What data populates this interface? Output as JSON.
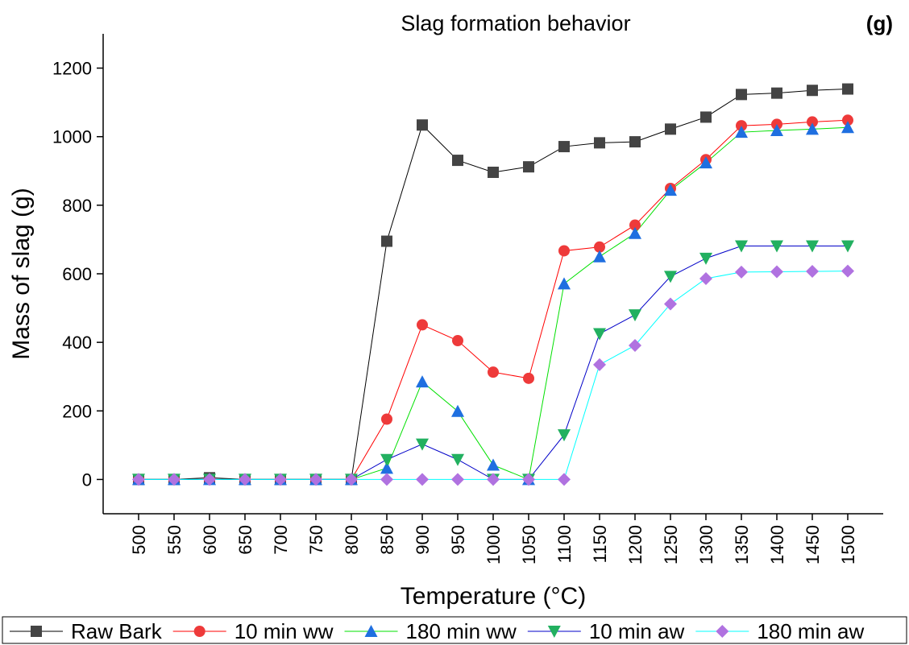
{
  "chart_data": {
    "type": "line",
    "title": "Slag formation behavior",
    "annotation": "(g)",
    "x_label": "Temperature (°C)",
    "y_label": "Mass of slag (g)",
    "x": [
      500,
      550,
      600,
      650,
      700,
      750,
      800,
      850,
      900,
      950,
      1000,
      1050,
      1100,
      1150,
      1200,
      1250,
      1300,
      1350,
      1400,
      1450,
      1500
    ],
    "xlim": [
      450,
      1550
    ],
    "xticks": [
      500,
      550,
      600,
      650,
      700,
      750,
      800,
      850,
      900,
      950,
      1000,
      1050,
      1100,
      1150,
      1200,
      1250,
      1300,
      1350,
      1400,
      1450,
      1500
    ],
    "ylim": [
      -100,
      1300
    ],
    "yticks": [
      0,
      200,
      400,
      600,
      800,
      1000,
      1200
    ],
    "legend": "bottom",
    "series": [
      {
        "name": "Raw Bark",
        "color": "#000000",
        "marker": "square",
        "marker_color": "#444444",
        "values": [
          0,
          0,
          5,
          0,
          0,
          0,
          0,
          695,
          1034,
          931,
          896,
          912,
          971,
          982,
          985,
          1022,
          1057,
          1123,
          1127,
          1135,
          1139
        ]
      },
      {
        "name": "10 min ww",
        "color": "#ff0000",
        "marker": "circle",
        "marker_color": "#ee3a3a",
        "values": [
          0,
          0,
          0,
          0,
          0,
          0,
          0,
          176,
          451,
          405,
          313,
          295,
          667,
          678,
          742,
          849,
          933,
          1032,
          1036,
          1043,
          1048
        ]
      },
      {
        "name": "180 min ww",
        "color": "#00e000",
        "marker": "triangle-up",
        "marker_color": "#1f6fe0",
        "values": [
          0,
          0,
          0,
          0,
          0,
          0,
          0,
          33,
          285,
          199,
          42,
          0,
          571,
          650,
          718,
          844,
          924,
          1013,
          1018,
          1022,
          1027
        ]
      },
      {
        "name": "10 min aw",
        "color": "#0000c8",
        "marker": "triangle-down",
        "marker_color": "#22b060",
        "values": [
          0,
          0,
          0,
          0,
          0,
          0,
          0,
          58,
          103,
          58,
          0,
          0,
          130,
          425,
          480,
          592,
          645,
          681,
          681,
          681,
          681
        ]
      },
      {
        "name": "180 min aw",
        "color": "#00ffff",
        "marker": "diamond",
        "marker_color": "#b072e0",
        "values": [
          0,
          0,
          0,
          0,
          0,
          0,
          0,
          0,
          0,
          0,
          0,
          0,
          0,
          335,
          391,
          512,
          586,
          605,
          606,
          607,
          608
        ]
      }
    ]
  }
}
